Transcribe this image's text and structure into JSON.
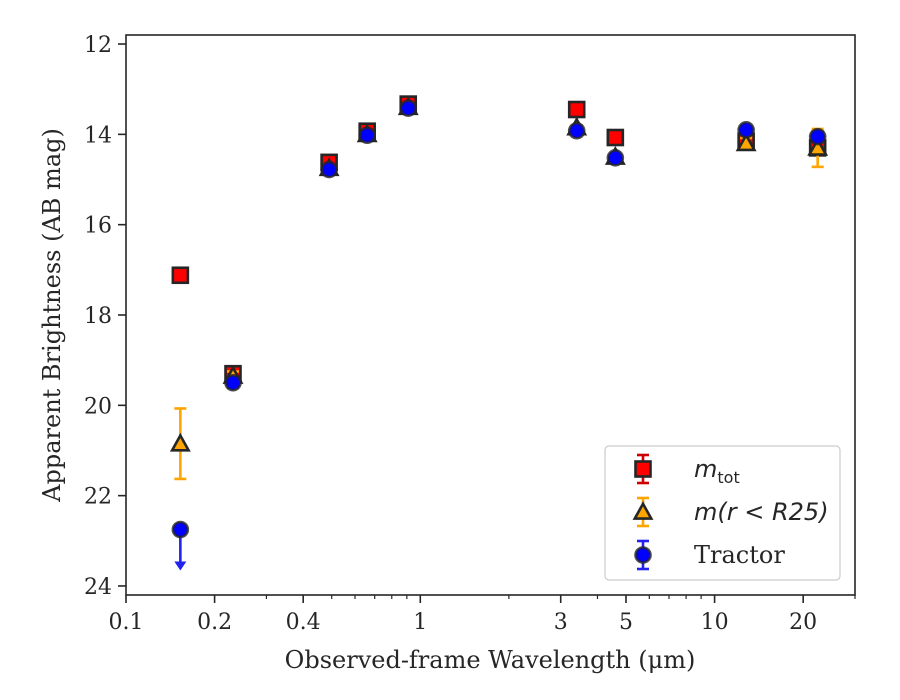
{
  "chart_data": {
    "type": "scatter",
    "xlabel": "Observed-frame Wavelength (μm)",
    "ylabel": "Apparent Brightness (AB mag)",
    "xscale": "log",
    "xlim": [
      0.1,
      30
    ],
    "ylim": [
      24.2,
      11.8
    ],
    "y_inverted": true,
    "xticks": [
      {
        "value": 0.1,
        "label": "0.1"
      },
      {
        "value": 0.2,
        "label": "0.2"
      },
      {
        "value": 0.4,
        "label": "0.4"
      },
      {
        "value": 1,
        "label": "1"
      },
      {
        "value": 3,
        "label": "3"
      },
      {
        "value": 5,
        "label": "5"
      },
      {
        "value": 10,
        "label": "10"
      },
      {
        "value": 20,
        "label": "20"
      }
    ],
    "yticks": [
      {
        "value": 12,
        "label": "12"
      },
      {
        "value": 14,
        "label": "14"
      },
      {
        "value": 16,
        "label": "16"
      },
      {
        "value": 18,
        "label": "18"
      },
      {
        "value": 20,
        "label": "20"
      },
      {
        "value": 22,
        "label": "22"
      },
      {
        "value": 24,
        "label": "24"
      }
    ],
    "legend_placement": "lower-right",
    "grid": false,
    "series": [
      {
        "key": "mtot",
        "legend_label": {
          "base": "m",
          "sub": "tot"
        },
        "marker": "square",
        "color": "#ff0000",
        "edge_color": "#262626",
        "error_color": "#cc0000",
        "points": [
          {
            "x": 0.153,
            "y": 17.12,
            "yerr": 0.05
          },
          {
            "x": 0.231,
            "y": 19.3,
            "yerr": 0.08
          },
          {
            "x": 0.49,
            "y": 14.62,
            "yerr": 0.05
          },
          {
            "x": 0.66,
            "y": 13.93,
            "yerr": 0.05
          },
          {
            "x": 0.91,
            "y": 13.33,
            "yerr": 0.05
          },
          {
            "x": 3.4,
            "y": 13.45,
            "yerr": 0.05
          },
          {
            "x": 4.6,
            "y": 14.07,
            "yerr": 0.05
          },
          {
            "x": 12.8,
            "y": 14.15,
            "yerr": 0.1
          },
          {
            "x": 22.4,
            "y": 14.3,
            "yerr": 0.1
          }
        ]
      },
      {
        "key": "mr25",
        "legend_label": {
          "text": "m(r < R25)"
        },
        "marker": "triangle",
        "color": "#ffa500",
        "edge_color": "#262626",
        "error_color": "#ffa500",
        "points": [
          {
            "x": 0.153,
            "y": 20.85,
            "yerr": 0.78
          },
          {
            "x": 0.231,
            "y": 19.35,
            "yerr": 0.1
          },
          {
            "x": 0.49,
            "y": 14.75,
            "yerr": 0.05
          },
          {
            "x": 0.66,
            "y": 14.0,
            "yerr": 0.05
          },
          {
            "x": 0.91,
            "y": 13.4,
            "yerr": 0.05
          },
          {
            "x": 3.4,
            "y": 13.85,
            "yerr": 0.05
          },
          {
            "x": 4.6,
            "y": 14.5,
            "yerr": 0.05
          },
          {
            "x": 12.8,
            "y": 14.2,
            "yerr": 0.12
          },
          {
            "x": 22.4,
            "y": 14.3,
            "yerr": 0.42
          }
        ]
      },
      {
        "key": "tractor",
        "legend_label": {
          "text": "Tractor"
        },
        "marker": "circle",
        "color": "#0000ff",
        "edge_color": "#262626",
        "error_color": "#2222ee",
        "points": [
          {
            "x": 0.153,
            "y": 22.75,
            "upper_limit": true
          },
          {
            "x": 0.231,
            "y": 19.5,
            "yerr": 0.1
          },
          {
            "x": 0.49,
            "y": 14.78,
            "yerr": 0.05
          },
          {
            "x": 0.66,
            "y": 14.02,
            "yerr": 0.05
          },
          {
            "x": 0.91,
            "y": 13.42,
            "yerr": 0.05
          },
          {
            "x": 3.4,
            "y": 13.92,
            "yerr": 0.05
          },
          {
            "x": 4.6,
            "y": 14.52,
            "yerr": 0.05
          },
          {
            "x": 12.8,
            "y": 13.9,
            "yerr": 0.05
          },
          {
            "x": 22.4,
            "y": 14.05,
            "yerr": 0.1
          }
        ]
      }
    ]
  }
}
